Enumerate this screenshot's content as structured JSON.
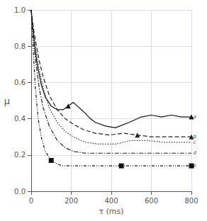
{
  "chart_data": {
    "type": "line",
    "xlabel": "τ (ms)",
    "ylabel": "μ",
    "xlim": [
      0,
      800
    ],
    "ylim": [
      0,
      1.0
    ],
    "xticks": [
      0,
      200,
      400,
      600,
      800
    ],
    "yticks": [
      {
        "value": 0,
        "label": "0.0"
      },
      {
        "value": 0.2,
        "label": "0.2"
      },
      {
        "value": 0.4,
        "label": "0.4"
      },
      {
        "value": 0.6,
        "label": "0.6"
      },
      {
        "value": 0.8,
        "label": "0.8"
      },
      {
        "value": 1.0,
        "label": "1.0"
      }
    ],
    "grid": true,
    "series": [
      {
        "color": "#111111",
        "line_style": "solid",
        "marker": "triangle",
        "x": [
          0,
          10,
          20,
          30,
          50,
          70,
          100,
          130,
          160,
          185,
          210,
          230,
          250,
          270,
          295,
          320,
          370,
          420,
          490,
          550,
          600,
          650,
          700,
          750,
          800
        ],
        "values": [
          1.0,
          0.88,
          0.78,
          0.7,
          0.59,
          0.52,
          0.47,
          0.45,
          0.45,
          0.47,
          0.49,
          0.47,
          0.45,
          0.43,
          0.4,
          0.38,
          0.36,
          0.35,
          0.38,
          0.41,
          0.42,
          0.41,
          0.42,
          0.41,
          0.41
        ],
        "marker_x": [
          185,
          800
        ]
      },
      {
        "color": "#222222",
        "line_style": "dashed",
        "marker": "triangle",
        "x": [
          0,
          10,
          20,
          40,
          60,
          90,
          130,
          170,
          210,
          260,
          320,
          390,
          460,
          530,
          600,
          680,
          750,
          800
        ],
        "values": [
          1.0,
          0.91,
          0.84,
          0.72,
          0.63,
          0.53,
          0.45,
          0.4,
          0.37,
          0.34,
          0.32,
          0.31,
          0.32,
          0.31,
          0.3,
          0.3,
          0.3,
          0.3
        ],
        "marker_x": [
          530,
          800
        ]
      },
      {
        "color": "#333333",
        "line_style": "dotted",
        "x": [
          0,
          10,
          20,
          40,
          60,
          90,
          130,
          170,
          210,
          270,
          340,
          420,
          500,
          580,
          660,
          750,
          800
        ],
        "values": [
          1.0,
          0.89,
          0.8,
          0.67,
          0.57,
          0.46,
          0.38,
          0.33,
          0.3,
          0.27,
          0.26,
          0.26,
          0.28,
          0.28,
          0.27,
          0.27,
          0.27
        ]
      },
      {
        "color": "#222222",
        "line_style": "dashdot",
        "x": [
          0,
          10,
          20,
          40,
          60,
          90,
          130,
          170,
          210,
          270,
          340,
          420,
          500,
          580,
          660,
          750,
          800
        ],
        "values": [
          1.0,
          0.86,
          0.74,
          0.57,
          0.46,
          0.36,
          0.28,
          0.24,
          0.22,
          0.21,
          0.21,
          0.21,
          0.21,
          0.21,
          0.21,
          0.21,
          0.21
        ]
      },
      {
        "color": "#111111",
        "line_style": "dashdotdot",
        "marker": "square",
        "x": [
          0,
          10,
          20,
          35,
          50,
          70,
          100,
          130,
          160,
          200,
          260,
          350,
          450,
          550,
          650,
          750,
          800
        ],
        "values": [
          1.0,
          0.78,
          0.58,
          0.4,
          0.3,
          0.22,
          0.17,
          0.15,
          0.14,
          0.14,
          0.14,
          0.14,
          0.14,
          0.14,
          0.14,
          0.14,
          0.14
        ],
        "marker_x": [
          100,
          450,
          800
        ]
      }
    ],
    "annotations": [
      {
        "text": "a",
        "x": 802,
        "y": 0.41
      },
      {
        "text": "b",
        "x": 802,
        "y": 0.3
      },
      {
        "text": "c",
        "x": 802,
        "y": 0.27
      },
      {
        "text": "d",
        "x": 802,
        "y": 0.21
      },
      {
        "text": "e",
        "x": 802,
        "y": 0.14
      }
    ]
  }
}
